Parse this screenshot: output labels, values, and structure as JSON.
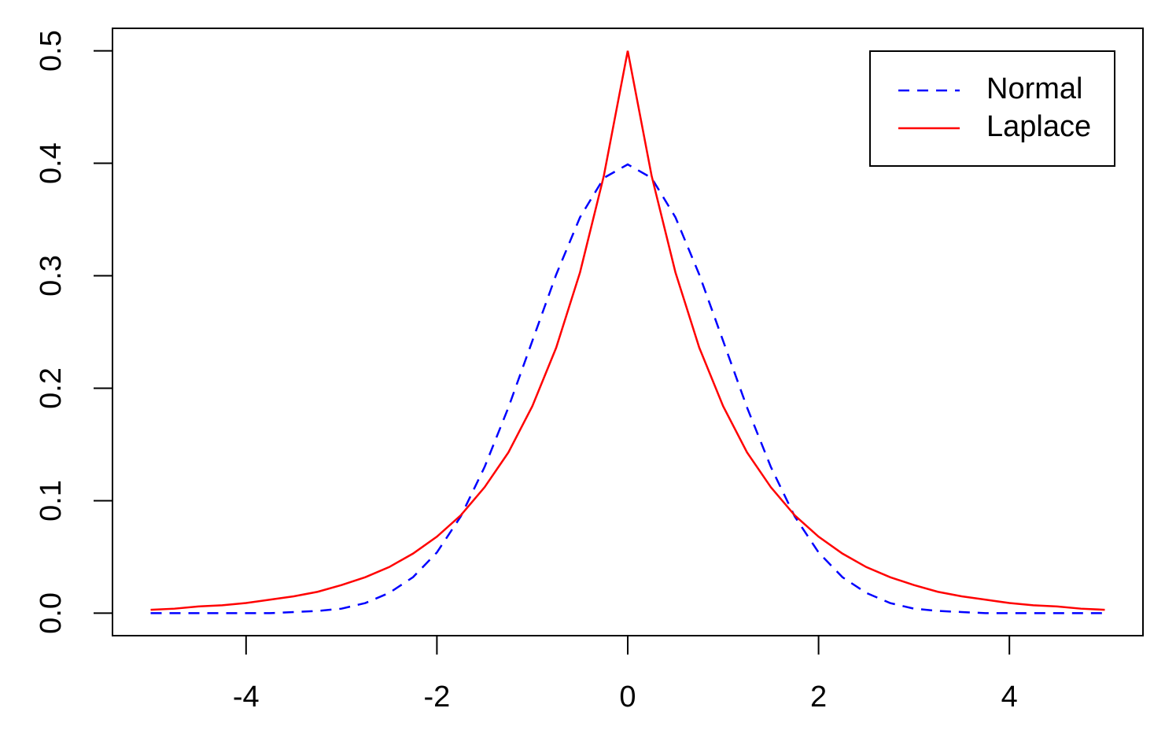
{
  "chart_data": {
    "type": "line",
    "x": [
      -5,
      -4.75,
      -4.5,
      -4.25,
      -4,
      -3.75,
      -3.5,
      -3.25,
      -3,
      -2.75,
      -2.5,
      -2.25,
      -2,
      -1.75,
      -1.5,
      -1.25,
      -1,
      -0.75,
      -0.5,
      -0.25,
      0,
      0.25,
      0.5,
      0.75,
      1,
      1.25,
      1.5,
      1.75,
      2,
      2.25,
      2.5,
      2.75,
      3,
      3.25,
      3.5,
      3.75,
      4,
      4.25,
      4.5,
      4.75,
      5
    ],
    "series": [
      {
        "name": "Normal",
        "color": "#0000ff",
        "dashed": true,
        "values": [
          0,
          0,
          0,
          0,
          0,
          0,
          0.001,
          0.002,
          0.004,
          0.009,
          0.018,
          0.032,
          0.054,
          0.086,
          0.13,
          0.183,
          0.242,
          0.301,
          0.352,
          0.387,
          0.399,
          0.387,
          0.352,
          0.301,
          0.242,
          0.183,
          0.13,
          0.086,
          0.054,
          0.032,
          0.018,
          0.009,
          0.004,
          0.002,
          0.001,
          0,
          0,
          0,
          0,
          0,
          0
        ]
      },
      {
        "name": "Laplace",
        "color": "#ff0000",
        "dashed": false,
        "values": [
          0.003,
          0.004,
          0.006,
          0.007,
          0.009,
          0.012,
          0.015,
          0.019,
          0.025,
          0.032,
          0.041,
          0.053,
          0.068,
          0.087,
          0.112,
          0.143,
          0.184,
          0.236,
          0.303,
          0.389,
          0.5,
          0.389,
          0.303,
          0.236,
          0.184,
          0.143,
          0.112,
          0.087,
          0.068,
          0.053,
          0.041,
          0.032,
          0.025,
          0.019,
          0.015,
          0.012,
          0.009,
          0.007,
          0.006,
          0.004,
          0.003
        ]
      }
    ],
    "xlim": [
      -5.4,
      5.4
    ],
    "xticks": [
      -4,
      -2,
      0,
      2,
      4
    ],
    "ylim": [
      -0.02,
      0.52
    ],
    "yticks": [
      {
        "value": 0,
        "label": "0.0"
      },
      0.1,
      0.2,
      0.3,
      0.4,
      0.5
    ],
    "legend": "top-right"
  }
}
